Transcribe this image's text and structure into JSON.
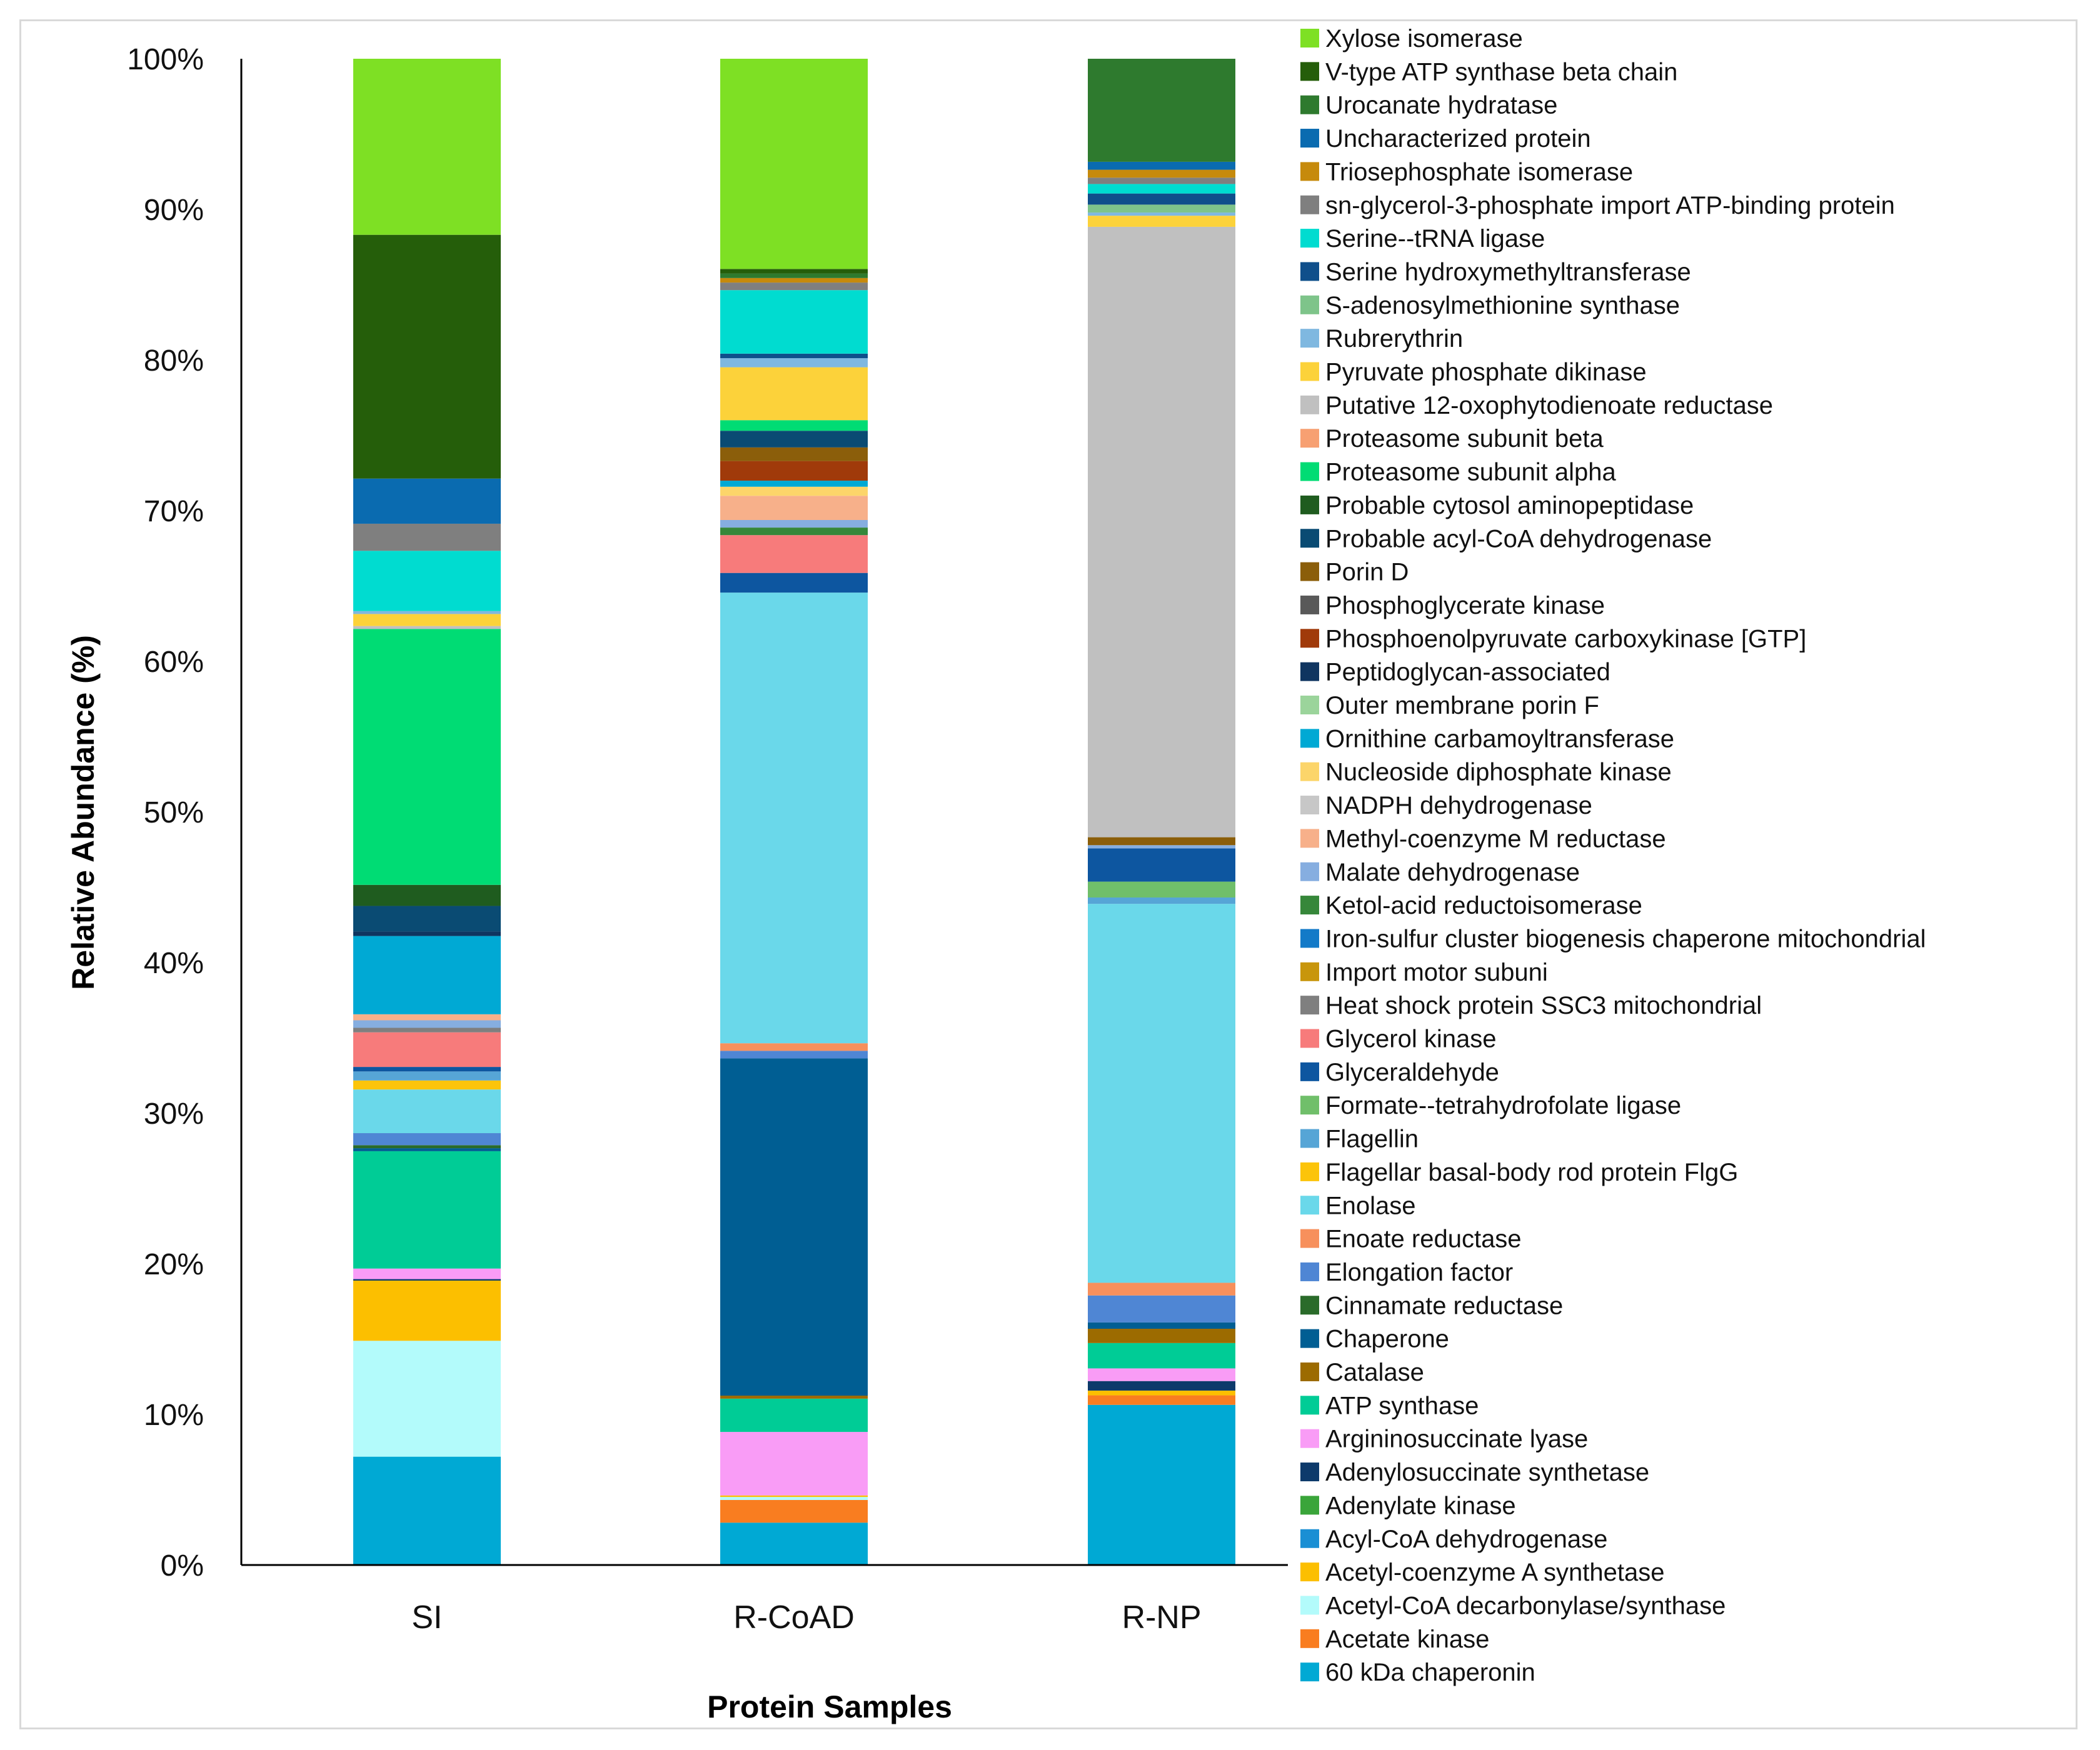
{
  "chart_data": {
    "type": "bar",
    "stacked": true,
    "percent": true,
    "title": "",
    "xlabel": "Protein Samples",
    "ylabel": "Relative Abundance (%)",
    "ylim": [
      0,
      100
    ],
    "yticks": [
      "0%",
      "10%",
      "20%",
      "30%",
      "40%",
      "50%",
      "60%",
      "70%",
      "80%",
      "90%",
      "100%"
    ],
    "categories": [
      "SI",
      "R-CoAD",
      "R-NP"
    ],
    "legend_position": "right",
    "series": [
      {
        "name": "60 kDa chaperonin",
        "color": "#00a9d4",
        "values": [
          7.2,
          2.8,
          10.1
        ]
      },
      {
        "name": "Acetate kinase",
        "color": "#f97d20",
        "values": [
          0,
          1.5,
          0.6
        ]
      },
      {
        "name": "Acetyl-CoA decarbonylase/synthase",
        "color": "#b3fbfb",
        "values": [
          7.7,
          0.2,
          0
        ]
      },
      {
        "name": "Acetyl-coenzyme A synthetase",
        "color": "#fcbf00",
        "values": [
          4,
          0.1,
          0.3
        ]
      },
      {
        "name": "Acyl-CoA dehydrogenase",
        "color": "#1a8fd4",
        "values": [
          0,
          0,
          0
        ]
      },
      {
        "name": "Adenylate kinase",
        "color": "#3aa53a",
        "values": [
          0,
          0,
          0
        ]
      },
      {
        "name": "Adenylosuccinate synthetase",
        "color": "#0d3a6b",
        "values": [
          0.1,
          0,
          0.6
        ]
      },
      {
        "name": "Argininosuccinate lyase",
        "color": "#f99cf6",
        "values": [
          0.7,
          4.2,
          0.8
        ]
      },
      {
        "name": "ATP synthase",
        "color": "#00cc96",
        "values": [
          7.8,
          2.2,
          1.6
        ]
      },
      {
        "name": "Catalase",
        "color": "#9c6b00",
        "values": [
          0,
          0.2,
          0.9
        ]
      },
      {
        "name": "Chaperone",
        "color": "#005e93",
        "values": [
          0.2,
          22.3,
          0.4
        ]
      },
      {
        "name": "Cinnamate reductase",
        "color": "#2a6b2a",
        "values": [
          0.2,
          0,
          0
        ]
      },
      {
        "name": "Elongation factor",
        "color": "#4f86d4",
        "values": [
          0.8,
          0.5,
          1.7
        ]
      },
      {
        "name": "Enoate reductase",
        "color": "#f7905c",
        "values": [
          0,
          0.5,
          0.8
        ]
      },
      {
        "name": "Enolase",
        "color": "#6ad8ea",
        "values": [
          2.9,
          29.8,
          23.9
        ]
      },
      {
        "name": "Flagellar basal-body rod protein FlgG",
        "color": "#fcc40a",
        "values": [
          0.6,
          0,
          0
        ]
      },
      {
        "name": "Flagellin",
        "color": "#56a5d6",
        "values": [
          0.6,
          0,
          0.4
        ]
      },
      {
        "name": "Formate--tetrahydrofolate ligase",
        "color": "#70bf6a",
        "values": [
          0,
          0,
          1
        ]
      },
      {
        "name": "Glyceraldehyde",
        "color": "#0d56a0",
        "values": [
          0.3,
          1.3,
          2.1
        ]
      },
      {
        "name": "Glycerol kinase",
        "color": "#f77b7b",
        "values": [
          2.3,
          2.5,
          0
        ]
      },
      {
        "name": "Heat shock protein SSC3  mitochondrial",
        "color": "#7f7f7f",
        "values": [
          0.3,
          0,
          0
        ]
      },
      {
        "name": "Import motor subuni",
        "color": "#c8960c",
        "values": [
          0,
          0,
          0
        ]
      },
      {
        "name": "Iron-sulfur cluster biogenesis chaperone  mitochondrial",
        "color": "#137ac8",
        "values": [
          0,
          0,
          0
        ]
      },
      {
        "name": "Ketol-acid reductoisomerase",
        "color": "#36873a",
        "values": [
          0,
          0.5,
          0
        ]
      },
      {
        "name": "Malate dehydrogenase",
        "color": "#86aee0",
        "values": [
          0.5,
          0.5,
          0.2
        ]
      },
      {
        "name": "Methyl-coenzyme M reductase",
        "color": "#f7b08a",
        "values": [
          0.4,
          1.6,
          0
        ]
      },
      {
        "name": "NADPH dehydrogenase",
        "color": "#c7c7c7",
        "values": [
          0,
          0,
          0
        ]
      },
      {
        "name": "Nucleoside diphosphate kinase",
        "color": "#fcd56a",
        "values": [
          0,
          0.6,
          0
        ]
      },
      {
        "name": "Ornithine carbamoyltransferase",
        "color": "#00a9d4",
        "values": [
          5.2,
          0.4,
          0
        ]
      },
      {
        "name": "Outer membrane porin F",
        "color": "#9bd49b",
        "values": [
          0,
          0,
          0
        ]
      },
      {
        "name": "Peptidoglycan-associated",
        "color": "#0f3560",
        "values": [
          0.3,
          0,
          0
        ]
      },
      {
        "name": "Phosphoenolpyruvate carboxykinase [GTP]",
        "color": "#a03a0a",
        "values": [
          0,
          1.3,
          0
        ]
      },
      {
        "name": "Phosphoglycerate kinase",
        "color": "#595959",
        "values": [
          0,
          0,
          0
        ]
      },
      {
        "name": "Porin D",
        "color": "#8b5e0a",
        "values": [
          0,
          0.9,
          0.5
        ]
      },
      {
        "name": "Probable acyl-CoA dehydrogenase",
        "color": "#0a4b73",
        "values": [
          1.7,
          1.1,
          0
        ]
      },
      {
        "name": "Probable cytosol aminopeptidase",
        "color": "#1f5c1f",
        "values": [
          1.4,
          0,
          0
        ]
      },
      {
        "name": "Proteasome subunit alpha",
        "color": "#00dc74",
        "values": [
          17,
          0.7,
          0
        ]
      },
      {
        "name": "Proteasome subunit beta",
        "color": "#f7a072",
        "values": [
          0,
          0,
          0
        ]
      },
      {
        "name": "Putative 12-oxophytodienoate reductase",
        "color": "#c0c0c0",
        "values": [
          0.2,
          0,
          38.5
        ]
      },
      {
        "name": "Pyruvate  phosphate dikinase",
        "color": "#fcd23a",
        "values": [
          0.8,
          3.5,
          0.7
        ]
      },
      {
        "name": "Rubrerythrin",
        "color": "#7fb8e0",
        "values": [
          0.2,
          0.6,
          0.2
        ]
      },
      {
        "name": "S-adenosylmethionine synthase",
        "color": "#7ec48a",
        "values": [
          0,
          0,
          0.5
        ]
      },
      {
        "name": "Serine hydroxymethyltransferase",
        "color": "#0f4f8b",
        "values": [
          0,
          0.3,
          0.7
        ]
      },
      {
        "name": "Serine--tRNA ligase",
        "color": "#00dcd0",
        "values": [
          4,
          4.2,
          0.6
        ]
      },
      {
        "name": "sn-glycerol-3-phosphate import ATP-binding protein",
        "color": "#7f7f7f",
        "values": [
          1.8,
          0.5,
          0.4
        ]
      },
      {
        "name": "Triosephosphate isomerase",
        "color": "#c68a0c",
        "values": [
          0,
          0.3,
          0.5
        ]
      },
      {
        "name": "Uncharacterized protein",
        "color": "#0a6bb0",
        "values": [
          3,
          0,
          0.5
        ]
      },
      {
        "name": "Urocanate hydratase",
        "color": "#2e7a2e",
        "values": [
          0,
          0.3,
          6.5
        ]
      },
      {
        "name": "V-type ATP synthase beta chain",
        "color": "#255e0a",
        "values": [
          16.2,
          0.3,
          0
        ]
      },
      {
        "name": "Xylose isomerase",
        "color": "#7ee024",
        "values": [
          11.7,
          13.9,
          0
        ]
      }
    ]
  }
}
